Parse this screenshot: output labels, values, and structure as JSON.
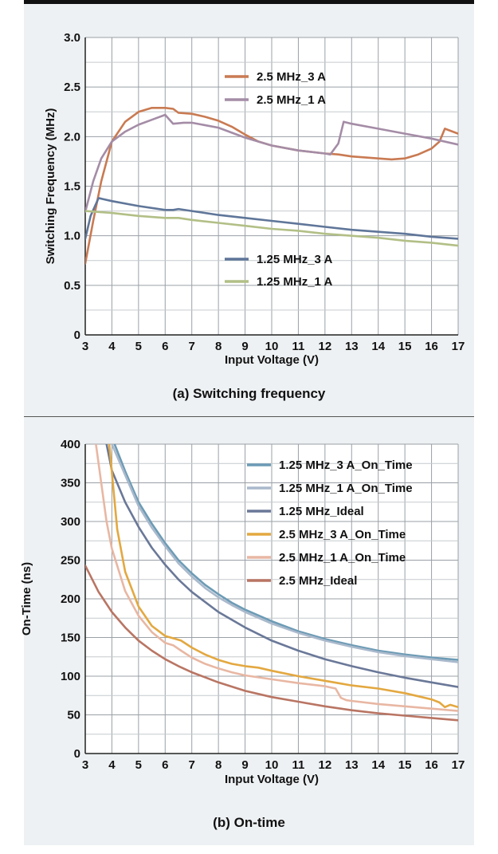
{
  "chart_data": [
    {
      "type": "line",
      "caption": "(a) Switching frequency",
      "xlabel": "Input Voltage (V)",
      "ylabel": "Switching Frequency (MHz)",
      "xlim": [
        3,
        17
      ],
      "ylim": [
        0,
        3.0
      ],
      "x_ticks": [
        "3",
        "4",
        "5",
        "6",
        "7",
        "8",
        "9",
        "10",
        "11",
        "12",
        "13",
        "14",
        "15",
        "16",
        "17"
      ],
      "y_ticks": [
        "0",
        "0.5",
        "1.0",
        "1.5",
        "2.0",
        "2.5",
        "3.0"
      ],
      "grid": true,
      "series": [
        {
          "name": "2.5 MHz_3 A",
          "color": "#c97a52",
          "points": [
            [
              3,
              0.72
            ],
            [
              3.3,
              1.15
            ],
            [
              3.6,
              1.55
            ],
            [
              4,
              1.95
            ],
            [
              4.5,
              2.15
            ],
            [
              5,
              2.25
            ],
            [
              5.5,
              2.29
            ],
            [
              6,
              2.29
            ],
            [
              6.3,
              2.28
            ],
            [
              6.5,
              2.24
            ],
            [
              7,
              2.23
            ],
            [
              7.5,
              2.2
            ],
            [
              8,
              2.16
            ],
            [
              8.5,
              2.1
            ],
            [
              9,
              2.02
            ],
            [
              9.5,
              1.95
            ],
            [
              10,
              1.91
            ],
            [
              11,
              1.86
            ],
            [
              12,
              1.83
            ],
            [
              12.5,
              1.82
            ],
            [
              13,
              1.8
            ],
            [
              13.5,
              1.79
            ],
            [
              14,
              1.78
            ],
            [
              14.5,
              1.77
            ],
            [
              15,
              1.78
            ],
            [
              15.5,
              1.82
            ],
            [
              16,
              1.88
            ],
            [
              16.3,
              1.95
            ],
            [
              16.5,
              2.08
            ],
            [
              17,
              2.03
            ]
          ]
        },
        {
          "name": "2.5 MHz_1 A",
          "color": "#a48ca6",
          "points": [
            [
              3,
              1.24
            ],
            [
              3.3,
              1.55
            ],
            [
              3.6,
              1.78
            ],
            [
              4,
              1.95
            ],
            [
              4.5,
              2.05
            ],
            [
              5,
              2.12
            ],
            [
              5.5,
              2.17
            ],
            [
              6,
              2.22
            ],
            [
              6.1,
              2.19
            ],
            [
              6.3,
              2.13
            ],
            [
              6.7,
              2.14
            ],
            [
              7,
              2.14
            ],
            [
              8,
              2.09
            ],
            [
              9,
              1.99
            ],
            [
              10,
              1.91
            ],
            [
              11,
              1.86
            ],
            [
              12,
              1.83
            ],
            [
              12.2,
              1.82
            ],
            [
              12.5,
              1.93
            ],
            [
              12.7,
              2.15
            ],
            [
              13,
              2.13
            ],
            [
              14,
              2.08
            ],
            [
              15,
              2.03
            ],
            [
              16,
              1.98
            ],
            [
              17,
              1.92
            ]
          ]
        },
        {
          "name": "1.25 MHz_3 A",
          "color": "#5f7699",
          "points": [
            [
              3,
              0.97
            ],
            [
              3.2,
              1.2
            ],
            [
              3.5,
              1.38
            ],
            [
              4,
              1.35
            ],
            [
              5,
              1.3
            ],
            [
              6,
              1.26
            ],
            [
              6.3,
              1.26
            ],
            [
              6.5,
              1.27
            ],
            [
              7,
              1.25
            ],
            [
              8,
              1.21
            ],
            [
              9,
              1.18
            ],
            [
              10,
              1.15
            ],
            [
              11,
              1.12
            ],
            [
              12,
              1.09
            ],
            [
              13,
              1.06
            ],
            [
              14,
              1.04
            ],
            [
              15,
              1.02
            ],
            [
              16,
              0.99
            ],
            [
              17,
              0.97
            ]
          ]
        },
        {
          "name": "1.25 MHz_1 A",
          "color": "#b2bf86",
          "points": [
            [
              3,
              1.25
            ],
            [
              4,
              1.23
            ],
            [
              5,
              1.2
            ],
            [
              6,
              1.18
            ],
            [
              6.5,
              1.18
            ],
            [
              7,
              1.16
            ],
            [
              8,
              1.13
            ],
            [
              9,
              1.1
            ],
            [
              10,
              1.07
            ],
            [
              11,
              1.05
            ],
            [
              12,
              1.02
            ],
            [
              13,
              1.0
            ],
            [
              14,
              0.98
            ],
            [
              15,
              0.95
            ],
            [
              16,
              0.93
            ],
            [
              17,
              0.9
            ]
          ]
        }
      ],
      "legend": [
        {
          "label": "2.5 MHz_3 A",
          "color": "#c97a52"
        },
        {
          "label": "2.5 MHz_1 A",
          "color": "#a48ca6"
        },
        {
          "label": "1.25 MHz_3 A",
          "color": "#5f7699"
        },
        {
          "label": "1.25 MHz_1 A",
          "color": "#b2bf86"
        }
      ]
    },
    {
      "type": "line",
      "caption": "(b) On-time",
      "xlabel": "Input Voltage (V)",
      "ylabel": "On-Time (ns)",
      "xlim": [
        3,
        17
      ],
      "ylim": [
        0,
        400
      ],
      "x_ticks": [
        "3",
        "4",
        "5",
        "6",
        "7",
        "8",
        "9",
        "10",
        "11",
        "12",
        "13",
        "14",
        "15",
        "16",
        "17"
      ],
      "y_ticks": [
        "0",
        "50",
        "100",
        "150",
        "200",
        "250",
        "300",
        "350",
        "400"
      ],
      "grid": true,
      "series": [
        {
          "name": "1.25 MHz_3 A_On_Time",
          "color": "#6c9bb5",
          "points": [
            [
              4.1,
              400
            ],
            [
              4.5,
              365
            ],
            [
              5,
              325
            ],
            [
              5.5,
              297
            ],
            [
              6,
              272
            ],
            [
              6.5,
              250
            ],
            [
              7,
              233
            ],
            [
              7.5,
              218
            ],
            [
              8,
              206
            ],
            [
              8.5,
              195
            ],
            [
              9,
              186
            ],
            [
              10,
              171
            ],
            [
              11,
              158
            ],
            [
              12,
              148
            ],
            [
              13,
              140
            ],
            [
              14,
              133
            ],
            [
              15,
              128
            ],
            [
              16,
              124
            ],
            [
              17,
              121
            ]
          ]
        },
        {
          "name": "1.25 MHz_1 A_On_Time",
          "color": "#aab9cc",
          "points": [
            [
              4,
              400
            ],
            [
              4.5,
              360
            ],
            [
              5,
              320
            ],
            [
              5.5,
              292
            ],
            [
              6,
              268
            ],
            [
              6.5,
              246
            ],
            [
              7,
              229
            ],
            [
              7.5,
              214
            ],
            [
              8,
              202
            ],
            [
              8.5,
              192
            ],
            [
              9,
              183
            ],
            [
              10,
              168
            ],
            [
              11,
              156
            ],
            [
              12,
              146
            ],
            [
              13,
              138
            ],
            [
              14,
              131
            ],
            [
              15,
              126
            ],
            [
              16,
              122
            ],
            [
              17,
              118
            ]
          ]
        },
        {
          "name": "1.25 MHz_Ideal",
          "color": "#6a7898",
          "points": [
            [
              3.8,
              400
            ],
            [
              4,
              366
            ],
            [
              4.5,
              325
            ],
            [
              5,
              293
            ],
            [
              5.5,
              266
            ],
            [
              6,
              244
            ],
            [
              6.5,
              225
            ],
            [
              7,
              209
            ],
            [
              8,
              183
            ],
            [
              9,
              163
            ],
            [
              10,
              146
            ],
            [
              11,
              133
            ],
            [
              12,
              122
            ],
            [
              13,
              113
            ],
            [
              14,
              105
            ],
            [
              15,
              98
            ],
            [
              16,
              92
            ],
            [
              17,
              86
            ]
          ]
        },
        {
          "name": "2.5 MHz_3 A_On_Time",
          "color": "#e3a840",
          "points": [
            [
              3.9,
              400
            ],
            [
              4.2,
              290
            ],
            [
              4.5,
              235
            ],
            [
              5,
              190
            ],
            [
              5.5,
              165
            ],
            [
              6,
              152
            ],
            [
              6.4,
              148
            ],
            [
              6.6,
              146
            ],
            [
              7,
              137
            ],
            [
              7.5,
              128
            ],
            [
              8,
              121
            ],
            [
              8.5,
              116
            ],
            [
              9,
              113
            ],
            [
              9.5,
              111
            ],
            [
              10,
              107
            ],
            [
              11,
              100
            ],
            [
              12,
              94
            ],
            [
              12.5,
              91
            ],
            [
              13,
              88
            ],
            [
              14,
              84
            ],
            [
              15,
              78
            ],
            [
              15.5,
              74
            ],
            [
              16,
              70
            ],
            [
              16.3,
              66
            ],
            [
              16.5,
              60
            ],
            [
              16.7,
              63
            ],
            [
              17,
              60
            ]
          ]
        },
        {
          "name": "2.5 MHz_1 A_On_Time",
          "color": "#e8b7a3",
          "points": [
            [
              3.4,
              400
            ],
            [
              3.8,
              300
            ],
            [
              4,
              265
            ],
            [
              4.5,
              210
            ],
            [
              5,
              178
            ],
            [
              5.5,
              157
            ],
            [
              6,
              143
            ],
            [
              6.3,
              140
            ],
            [
              6.6,
              133
            ],
            [
              7,
              124
            ],
            [
              7.5,
              116
            ],
            [
              8,
              110
            ],
            [
              8.5,
              105
            ],
            [
              9,
              101
            ],
            [
              10,
              96
            ],
            [
              11,
              91
            ],
            [
              12,
              87
            ],
            [
              12.4,
              84
            ],
            [
              12.6,
              72
            ],
            [
              12.8,
              69
            ],
            [
              13,
              68
            ],
            [
              14,
              64
            ],
            [
              15,
              61
            ],
            [
              16,
              58
            ],
            [
              17,
              55
            ]
          ]
        },
        {
          "name": "2.5 MHz_Ideal",
          "color": "#b97563",
          "points": [
            [
              3,
              243
            ],
            [
              3.5,
              209
            ],
            [
              4,
              183
            ],
            [
              4.5,
              163
            ],
            [
              5,
              146
            ],
            [
              5.5,
              133
            ],
            [
              6,
              122
            ],
            [
              6.5,
              113
            ],
            [
              7,
              105
            ],
            [
              8,
              92
            ],
            [
              9,
              81
            ],
            [
              10,
              73
            ],
            [
              11,
              67
            ],
            [
              12,
              61
            ],
            [
              13,
              56
            ],
            [
              14,
              52
            ],
            [
              15,
              49
            ],
            [
              16,
              46
            ],
            [
              17,
              43
            ]
          ]
        }
      ],
      "legend": [
        {
          "label": "1.25 MHz_3 A_On_Time",
          "color": "#6c9bb5"
        },
        {
          "label": "1.25 MHz_1 A_On_Time",
          "color": "#aab9cc"
        },
        {
          "label": "1.25 MHz_Ideal",
          "color": "#6a7898"
        },
        {
          "label": "2.5 MHz_3 A_On_Time",
          "color": "#e3a840"
        },
        {
          "label": "2.5 MHz_1 A_On_Time",
          "color": "#e8b7a3"
        },
        {
          "label": "2.5 MHz_Ideal",
          "color": "#b97563"
        }
      ]
    }
  ]
}
